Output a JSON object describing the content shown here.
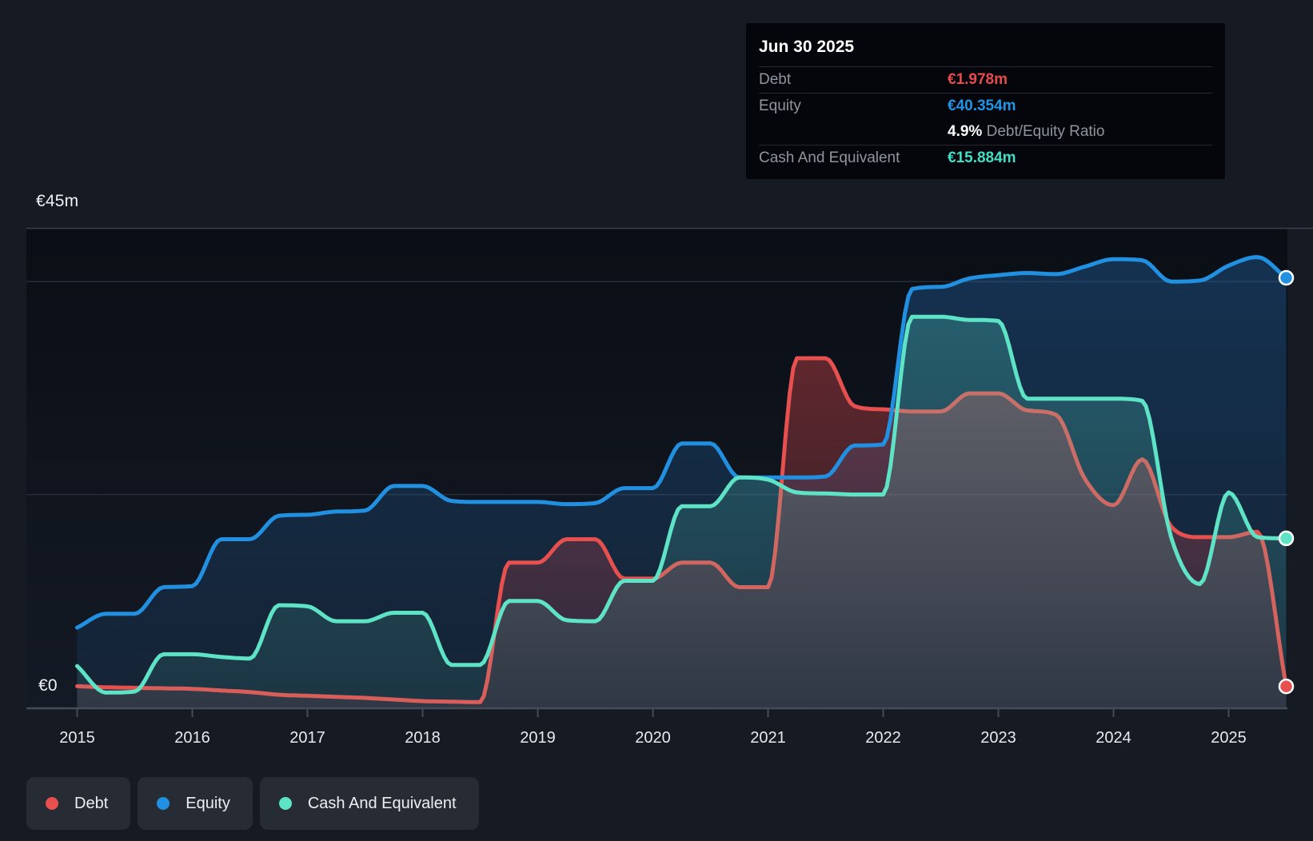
{
  "colors": {
    "debt": "#e6504e",
    "equity": "#2190e0",
    "cash": "#5fe3c6",
    "debt_value": "#e84b4b",
    "equity_value": "#2095e5",
    "cash_value": "#42dfc4",
    "page_bg": "#151a23",
    "grid_major": "#3a414c",
    "grid_minor": "#272d38",
    "axis": "#454b57"
  },
  "tooltip": {
    "date": "Jun 30 2025",
    "debt": {
      "label": "Debt",
      "value": "€1.978m"
    },
    "equity": {
      "label": "Equity",
      "value": "€40.354m"
    },
    "ratio": {
      "value": "4.9%",
      "label": "Debt/Equity Ratio"
    },
    "cash": {
      "label": "Cash And Equivalent",
      "value": "€15.884m"
    }
  },
  "y_axis": {
    "top_label": "€45m",
    "zero_label": "€0"
  },
  "legend": {
    "items": [
      {
        "label": "Debt",
        "color": "#e6504e"
      },
      {
        "label": "Equity",
        "color": "#2190e0"
      },
      {
        "label": "Cash And Equivalent",
        "color": "#5fe3c6"
      }
    ]
  },
  "chart_data": {
    "type": "area",
    "title": "",
    "x_unit": "year",
    "x_start": 2015.0,
    "x_step": 0.25,
    "x_end": 2025.5,
    "x_ticks": [
      "2015",
      "2016",
      "2017",
      "2018",
      "2019",
      "2020",
      "2021",
      "2022",
      "2023",
      "2024",
      "2025"
    ],
    "ylabel": "€m",
    "ylim": [
      0,
      45
    ],
    "gridlines_m": {
      "labeled_top": 45,
      "unlabeled": [
        20,
        40
      ],
      "baseline": 0
    },
    "legend_position": "bottom-left",
    "series": [
      {
        "name": "Debt",
        "color": "#e6504e",
        "values": [
          2.0,
          1.9,
          1.85,
          1.8,
          1.75,
          1.6,
          1.45,
          1.2,
          1.1,
          1.0,
          0.9,
          0.75,
          0.6,
          0.55,
          0.5,
          13.6,
          13.6,
          15.8,
          15.8,
          12.1,
          12.1,
          13.6,
          13.6,
          11.3,
          11.3,
          32.8,
          32.8,
          28.3,
          28.0,
          27.8,
          27.8,
          29.5,
          29.5,
          27.9,
          27.5,
          21.5,
          19.0,
          23.3,
          17.0,
          16.0,
          16.0,
          16.5,
          1.978
        ],
        "last_value_label": "€1.978m"
      },
      {
        "name": "Equity",
        "color": "#2190e0",
        "values": [
          7.5,
          8.8,
          8.8,
          11.3,
          11.4,
          15.8,
          15.8,
          18.0,
          18.1,
          18.4,
          18.5,
          20.8,
          20.8,
          19.4,
          19.3,
          19.3,
          19.3,
          19.1,
          19.2,
          20.6,
          20.6,
          24.8,
          24.8,
          21.6,
          21.6,
          21.6,
          21.7,
          24.6,
          24.7,
          39.3,
          39.5,
          40.3,
          40.6,
          40.8,
          40.7,
          41.4,
          42.1,
          42.0,
          40.0,
          40.1,
          41.5,
          42.3,
          40.354
        ],
        "last_value_label": "€40.354m"
      },
      {
        "name": "Cash And Equivalent",
        "color": "#5fe3c6",
        "values": [
          3.9,
          1.4,
          1.5,
          5.0,
          5.0,
          4.75,
          4.6,
          9.6,
          9.5,
          8.1,
          8.1,
          8.9,
          8.9,
          4.0,
          4.0,
          10.0,
          10.0,
          8.2,
          8.1,
          11.9,
          11.9,
          18.9,
          18.9,
          21.6,
          21.4,
          20.2,
          20.1,
          20.0,
          20.0,
          36.7,
          36.7,
          36.4,
          36.3,
          29.0,
          29.0,
          29.0,
          29.0,
          28.8,
          16.0,
          11.6,
          20.2,
          16.0,
          15.884
        ],
        "last_value_label": "€15.884m"
      }
    ]
  }
}
